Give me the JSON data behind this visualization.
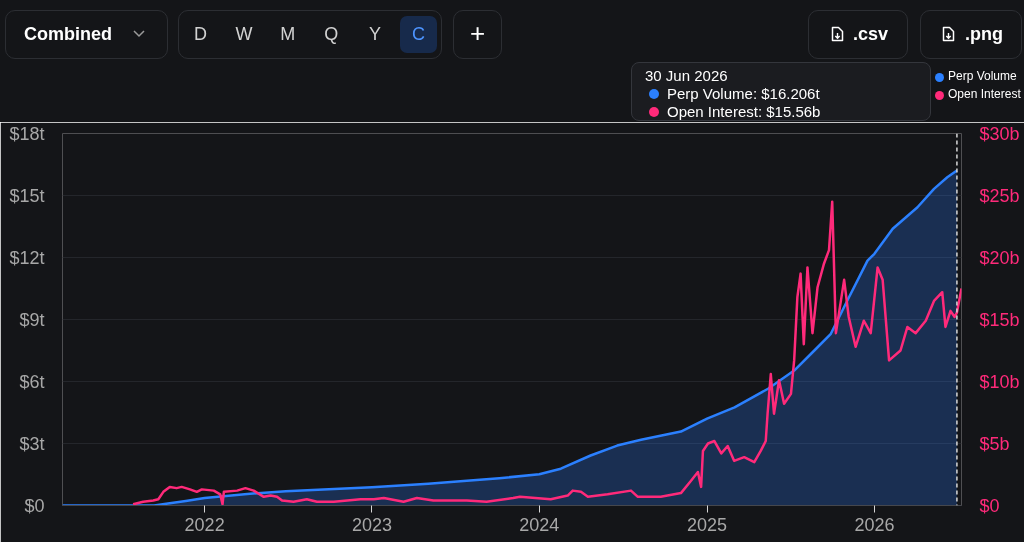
{
  "chart_data": {
    "type": "area",
    "xlim": [
      "2021-02-25",
      "2026-07-10"
    ],
    "xticks": [
      {
        "value": "2022-01-01",
        "label": "2022"
      },
      {
        "value": "2023-01-01",
        "label": "2023"
      },
      {
        "value": "2024-01-01",
        "label": "2024"
      },
      {
        "value": "2025-01-01",
        "label": "2025"
      },
      {
        "value": "2026-01-01",
        "label": "2026"
      }
    ],
    "ylim": [
      0,
      18
    ],
    "yticks": [
      {
        "value": 0,
        "label": "$0"
      },
      {
        "value": 3,
        "label": "$3t"
      },
      {
        "value": 6,
        "label": "$6t"
      },
      {
        "value": 9,
        "label": "$9t"
      },
      {
        "value": 12,
        "label": "$12t"
      },
      {
        "value": 15,
        "label": "$15t"
      },
      {
        "value": 18,
        "label": "$18t"
      }
    ],
    "y2lim": [
      0,
      30
    ],
    "y2ticks": [
      {
        "value": 0,
        "label": "$0"
      },
      {
        "value": 5,
        "label": "$5b"
      },
      {
        "value": 10,
        "label": "$10b"
      },
      {
        "value": 15,
        "label": "$15b"
      },
      {
        "value": 20,
        "label": "$20b"
      },
      {
        "value": 25,
        "label": "$25b"
      },
      {
        "value": 30,
        "label": "$30b"
      }
    ],
    "grid": "y",
    "legend": "top right",
    "series": [
      {
        "name": "Perp Volume",
        "color": "#2b80ff",
        "x": [
          "2021-02-25",
          "2021-09-13",
          "2021-10-13",
          "2021-11-21",
          "2022-01-01",
          "2022-04-10",
          "2022-06-27",
          "2023-01-01",
          "2023-05-04",
          "2023-07-20",
          "2023-10-06",
          "2024-01-01",
          "2024-02-17",
          "2024-04-22",
          "2024-06-19",
          "2024-08-10",
          "2024-11-05",
          "2025-01-01",
          "2025-03-02",
          "2025-05-14",
          "2025-07-10",
          "2025-08-23",
          "2025-09-28",
          "2025-11-03",
          "2025-12-17",
          "2026-01-01",
          "2026-02-10",
          "2026-04-05",
          "2026-05-11",
          "2026-06-09",
          "2026-06-30"
        ],
        "values": [
          0,
          0,
          0.1,
          0.22,
          0.36,
          0.57,
          0.69,
          0.88,
          1.05,
          1.18,
          1.32,
          1.51,
          1.78,
          2.42,
          2.9,
          3.18,
          3.58,
          4.2,
          4.75,
          5.65,
          6.53,
          7.5,
          8.31,
          9.92,
          11.85,
          12.18,
          13.39,
          14.43,
          15.32,
          15.88,
          16.206
        ]
      },
      {
        "name": "Open Interest",
        "color": "#ff2a7a",
        "type": "line",
        "axis": "y2",
        "x": [
          "2021-07-29",
          "2021-08-20",
          "2021-09-11",
          "2021-09-22",
          "2021-10-03",
          "2021-10-17",
          "2021-11-01",
          "2021-11-12",
          "2021-11-30",
          "2021-12-15",
          "2021-12-26",
          "2022-01-21",
          "2022-02-04",
          "2022-02-09",
          "2022-02-12",
          "2022-03-13",
          "2022-03-31",
          "2022-04-18",
          "2022-05-10",
          "2022-05-25",
          "2022-06-08",
          "2022-06-19",
          "2022-07-14",
          "2022-08-12",
          "2022-09-03",
          "2022-10-10",
          "2022-12-07",
          "2023-01-05",
          "2023-01-27",
          "2023-03-11",
          "2023-04-09",
          "2023-05-15",
          "2023-07-27",
          "2023-09-08",
          "2023-11-05",
          "2023-11-20",
          "2024-01-26",
          "2024-03-03",
          "2024-03-14",
          "2024-04-01",
          "2024-04-16",
          "2024-05-29",
          "2024-07-19",
          "2024-08-03",
          "2024-09-22",
          "2024-11-05",
          "2024-11-27",
          "2024-12-12",
          "2024-12-19",
          "2024-12-23",
          "2025-01-03",
          "2025-01-17",
          "2025-02-01",
          "2025-02-15",
          "2025-03-01",
          "2025-03-23",
          "2025-04-14",
          "2025-04-28",
          "2025-05-09",
          "2025-05-13",
          "2025-05-20",
          "2025-05-27",
          "2025-06-07",
          "2025-06-18",
          "2025-07-03",
          "2025-07-10",
          "2025-07-17",
          "2025-07-24",
          "2025-07-31",
          "2025-08-08",
          "2025-08-19",
          "2025-08-30",
          "2025-09-13",
          "2025-09-24",
          "2025-10-01",
          "2025-10-09",
          "2025-10-27",
          "2025-11-06",
          "2025-11-21",
          "2025-12-09",
          "2025-12-24",
          "2026-01-08",
          "2026-01-19",
          "2026-02-02",
          "2026-02-27",
          "2026-03-14",
          "2026-04-01",
          "2026-04-23",
          "2026-05-11",
          "2026-05-29",
          "2026-06-05",
          "2026-06-16",
          "2026-06-25",
          "2026-06-30",
          "2026-07-10"
        ],
        "values": [
          0.1,
          0.3,
          0.4,
          0.5,
          1.1,
          1.5,
          1.4,
          1.5,
          1.3,
          1.1,
          1.3,
          1.2,
          0.9,
          0.1,
          1.1,
          1.2,
          1.4,
          1.2,
          0.7,
          0.8,
          0.7,
          0.4,
          0.3,
          0.5,
          0.3,
          0.3,
          0.5,
          0.5,
          0.6,
          0.3,
          0.6,
          0.4,
          0.4,
          0.3,
          0.6,
          0.7,
          0.5,
          0.8,
          1.2,
          1.1,
          0.7,
          0.9,
          1.2,
          0.7,
          0.7,
          1.0,
          2.0,
          2.7,
          1.5,
          4.4,
          5.0,
          5.2,
          4.2,
          4.8,
          3.6,
          3.9,
          3.5,
          4.4,
          5.2,
          7.4,
          10.6,
          7.4,
          10.1,
          8.2,
          9.0,
          11.7,
          16.8,
          18.7,
          13.0,
          19.2,
          13.9,
          17.6,
          19.5,
          20.6,
          24.5,
          13.9,
          18.2,
          15.2,
          12.8,
          14.9,
          13.9,
          19.2,
          18.2,
          11.7,
          12.5,
          14.4,
          13.9,
          14.9,
          16.5,
          17.2,
          14.4,
          15.7,
          15.2,
          15.56,
          17.5
        ]
      }
    ],
    "ref_lines": [
      {
        "axis": "x",
        "value": "2026-06-30",
        "color": "#d8d8d8",
        "line_style": "dashed"
      }
    ],
    "annotations": [
      "Combined",
      "D",
      "W",
      "M",
      "Q",
      "Y",
      "C",
      "+",
      ".csv",
      ".png",
      "30 Jun 2026",
      "Perp Volume: $16.206t",
      "Open Interest: $15.56b"
    ]
  }
}
